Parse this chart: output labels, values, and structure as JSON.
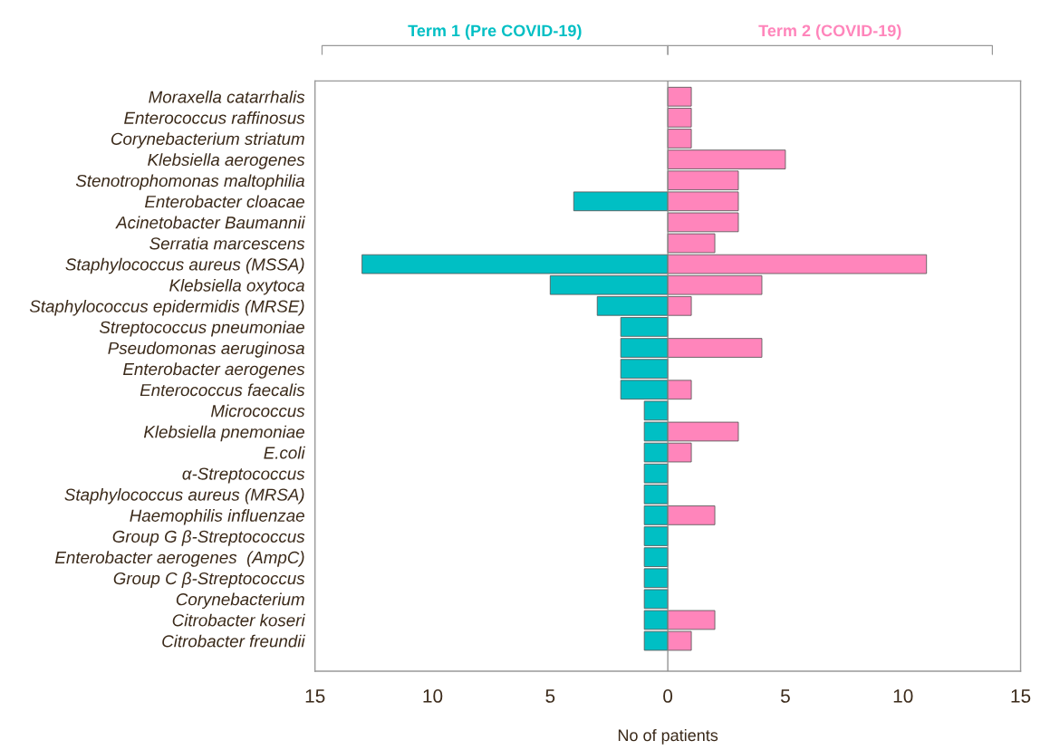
{
  "chart_data": {
    "type": "bar",
    "orientation": "horizontal",
    "xlabel": "No of patients",
    "categories": [
      "Moraxella catarrhalis",
      "Enterococcus raffinosus",
      "Corynebacterium striatum",
      "Klebsiella aerogenes",
      "Stenotrophomonas maltophilia",
      "Enterobacter cloacae",
      "Acinetobacter Baumannii",
      "Serratia marcescens",
      "Staphylococcus aureus (MSSA)",
      "Klebsiella oxytoca",
      "Staphylococcus epidermidis (MRSE)",
      "Streptococcus pneumoniae",
      "Pseudomonas aeruginosa",
      "Enterobacter aerogenes",
      "Enterococcus faecalis",
      "Micrococcus",
      "Klebsiella pnemoniae",
      "E.coli",
      "α-Streptococcus",
      "Staphylococcus aureus (MRSA)",
      "Haemophilis influenzae",
      "Group G β-Streptococcus",
      "Enterobacter aerogenes  (AmpC)",
      "Group C β-Streptococcus",
      "Corynebacterium",
      "Citrobacter koseri",
      "Citrobacter freundii"
    ],
    "series": [
      {
        "name": "Term 1 (Pre COVID-19)",
        "color": "#00bfc4",
        "values": [
          null,
          null,
          null,
          null,
          null,
          -4,
          null,
          null,
          -13,
          -5,
          -3,
          -2,
          -2,
          -2,
          -2,
          -1,
          -1,
          -1,
          -1,
          -1,
          -1,
          -1,
          -1,
          -1,
          -1,
          -1,
          -1
        ]
      },
      {
        "name": "Term 2 (COVID-19)",
        "color": "#ff85bb",
        "values": [
          1,
          1,
          1,
          5,
          3,
          3,
          3,
          2,
          11,
          4,
          1,
          null,
          4,
          null,
          1,
          null,
          3,
          1,
          null,
          null,
          2,
          null,
          null,
          null,
          null,
          2,
          1
        ]
      }
    ],
    "xlim": [
      -15,
      15
    ],
    "xticks": [
      {
        "value": -15,
        "label": "15"
      },
      {
        "value": -10,
        "label": "10"
      },
      {
        "value": -5,
        "label": "5"
      },
      0,
      5,
      10,
      15
    ],
    "ref_lines": [
      {
        "axis": "x",
        "value": 0,
        "color": "#888888"
      }
    ],
    "grid": false,
    "legend": false
  }
}
